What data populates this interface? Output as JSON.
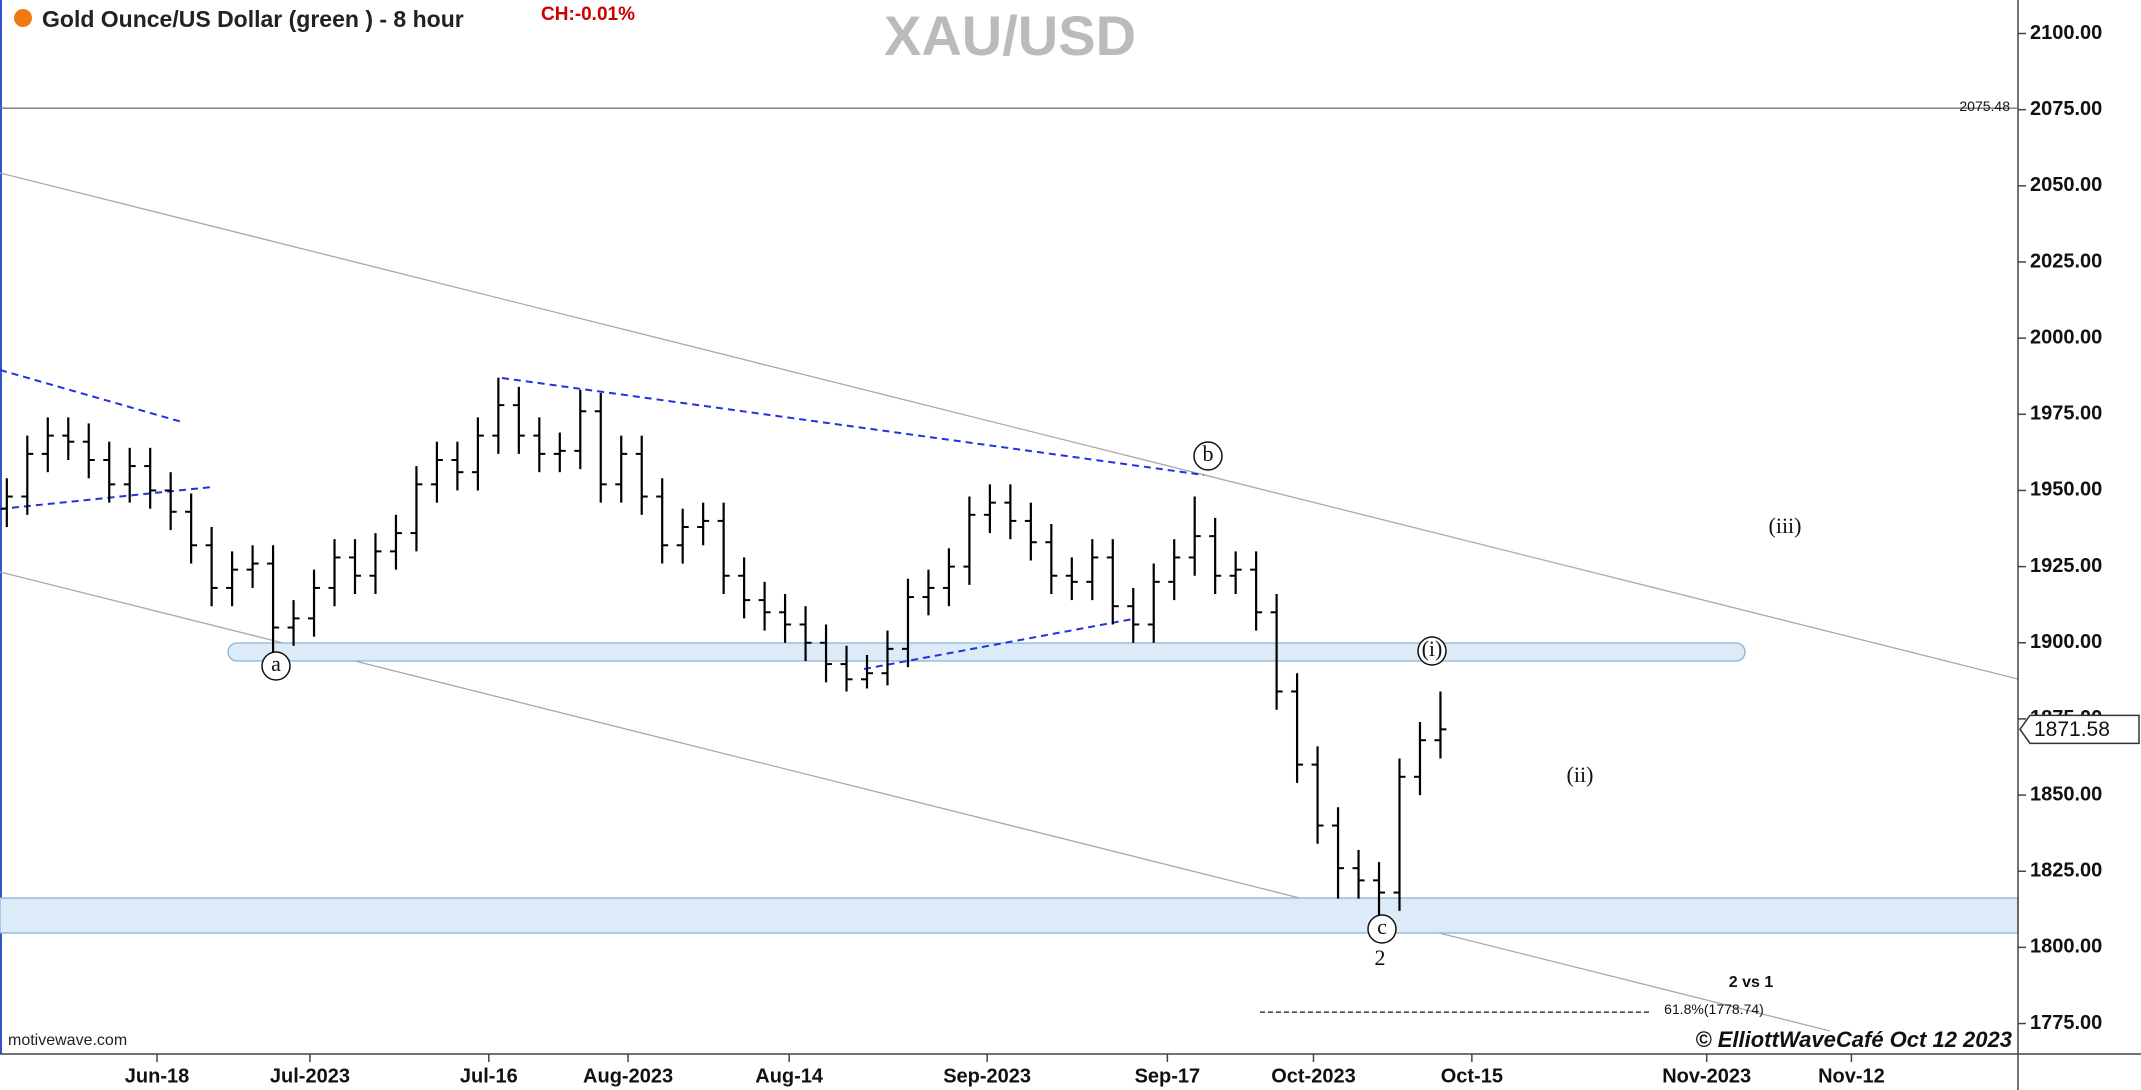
{
  "chart_data": {
    "type": "ohlc",
    "title": "Gold Ounce/US Dollar (green ) - 8 hour",
    "change_label": "CH:-0.01%",
    "symbol": "XAU/USD",
    "source": "motivewave.com",
    "copyright": "© ElliottWaveCafé Oct 12 2023",
    "color": "#000000",
    "x": [
      0.5,
      2,
      3.5,
      5,
      6.5,
      8,
      9.5,
      11,
      12.5,
      14,
      15.5,
      17,
      18.5,
      20,
      21.5,
      23,
      24.5,
      26,
      27.5,
      29,
      30.5,
      32,
      33.5,
      35,
      36.5,
      38,
      39.5,
      41,
      42.5,
      44,
      45.5,
      47,
      48.5,
      50,
      51.5,
      53,
      54.5,
      56,
      57.5,
      59,
      60.5,
      62,
      63.5,
      65,
      66.5,
      68,
      69.5,
      71,
      72.5,
      74,
      75.5,
      77,
      78.5,
      80,
      81.5,
      83,
      84.5,
      86,
      87.5,
      89,
      90.5,
      92,
      93.5,
      95,
      96.5,
      98,
      99.5,
      101,
      102.5,
      104,
      105.5
    ],
    "open": [
      1944,
      1948,
      1962,
      1968,
      1966,
      1960,
      1952,
      1958,
      1950,
      1943,
      1932,
      1918,
      1924,
      1926,
      1905,
      1908,
      1918,
      1928,
      1922,
      1930,
      1936,
      1952,
      1960,
      1956,
      1968,
      1978,
      1968,
      1962,
      1963,
      1976,
      1952,
      1962,
      1948,
      1932,
      1938,
      1940,
      1922,
      1914,
      1910,
      1906,
      1900,
      1893,
      1888,
      1890,
      1898,
      1915,
      1918,
      1925,
      1942,
      1946,
      1940,
      1933,
      1922,
      1920,
      1928,
      1912,
      1906,
      1920,
      1928,
      1935,
      1922,
      1924,
      1910,
      1884,
      1860,
      1840,
      1826,
      1822,
      1818,
      1856,
      1868
    ],
    "high": [
      1954,
      1968,
      1974,
      1974,
      1972,
      1966,
      1964,
      1964,
      1956,
      1949,
      1938,
      1930,
      1932,
      1932,
      1914,
      1924,
      1934,
      1934,
      1936,
      1942,
      1958,
      1966,
      1966,
      1974,
      1987,
      1984,
      1974,
      1969,
      1983,
      1982,
      1968,
      1968,
      1954,
      1944,
      1946,
      1946,
      1928,
      1920,
      1916,
      1912,
      1906,
      1899,
      1896,
      1904,
      1921,
      1924,
      1931,
      1948,
      1952,
      1952,
      1946,
      1939,
      1928,
      1934,
      1934,
      1918,
      1926,
      1934,
      1948,
      1941,
      1930,
      1930,
      1916,
      1890,
      1866,
      1846,
      1832,
      1828,
      1862,
      1874,
      1884
    ],
    "low": [
      1938,
      1942,
      1956,
      1960,
      1954,
      1946,
      1946,
      1944,
      1937,
      1926,
      1912,
      1912,
      1918,
      1893,
      1899,
      1902,
      1912,
      1916,
      1916,
      1924,
      1930,
      1946,
      1950,
      1950,
      1962,
      1962,
      1956,
      1956,
      1957,
      1946,
      1946,
      1942,
      1926,
      1926,
      1932,
      1916,
      1908,
      1904,
      1900,
      1894,
      1887,
      1884,
      1885,
      1886,
      1892,
      1909,
      1912,
      1919,
      1936,
      1934,
      1927,
      1916,
      1914,
      1914,
      1906,
      1900,
      1900,
      1914,
      1922,
      1916,
      1916,
      1904,
      1878,
      1854,
      1834,
      1816,
      1816,
      1810,
      1812,
      1850,
      1862
    ],
    "close": [
      1948,
      1962,
      1968,
      1966,
      1960,
      1952,
      1958,
      1950,
      1943,
      1932,
      1918,
      1924,
      1926,
      1905,
      1908,
      1918,
      1928,
      1922,
      1930,
      1936,
      1952,
      1960,
      1956,
      1968,
      1978,
      1968,
      1962,
      1963,
      1976,
      1952,
      1962,
      1948,
      1932,
      1938,
      1940,
      1922,
      1914,
      1910,
      1906,
      1900,
      1893,
      1888,
      1890,
      1898,
      1915,
      1918,
      1925,
      1942,
      1946,
      1940,
      1933,
      1922,
      1920,
      1928,
      1912,
      1906,
      1920,
      1928,
      1935,
      1922,
      1924,
      1910,
      1884,
      1860,
      1840,
      1826,
      1822,
      1818,
      1856,
      1868,
      1871.58
    ],
    "xlim": [
      0,
      147.8
    ],
    "xticks": [
      {
        "value": 11.5,
        "label": "Jun-18"
      },
      {
        "value": 22.7,
        "label": "Jul-2023"
      },
      {
        "value": 35.8,
        "label": "Jul-16"
      },
      {
        "value": 46.0,
        "label": "Aug-2023"
      },
      {
        "value": 57.8,
        "label": "Aug-14"
      },
      {
        "value": 72.3,
        "label": "Sep-2023"
      },
      {
        "value": 85.5,
        "label": "Sep-17"
      },
      {
        "value": 96.2,
        "label": "Oct-2023"
      },
      {
        "value": 107.8,
        "label": "Oct-15"
      },
      {
        "value": 125.0,
        "label": "Nov-2023"
      },
      {
        "value": 135.6,
        "label": "Nov-12"
      }
    ],
    "ylim": [
      1765,
      2111
    ],
    "yticks": [
      {
        "value": 1775,
        "label": "1775.00"
      },
      {
        "value": 1800,
        "label": "1800.00"
      },
      {
        "value": 1825,
        "label": "1825.00"
      },
      {
        "value": 1850,
        "label": "1850.00"
      },
      {
        "value": 1875,
        "label": "1875.00"
      },
      {
        "value": 1900,
        "label": "1900.00"
      },
      {
        "value": 1925,
        "label": "1925.00"
      },
      {
        "value": 1950,
        "label": "1950.00"
      },
      {
        "value": 1975,
        "label": "1975.00"
      },
      {
        "value": 2000,
        "label": "2000.00"
      },
      {
        "value": 2025,
        "label": "2025.00"
      },
      {
        "value": 2050,
        "label": "2050.00"
      },
      {
        "value": 2075,
        "label": "2075.00"
      },
      {
        "value": 2100,
        "label": "2100.00"
      }
    ],
    "resistance_level": 2075.48,
    "fib_level": 1778.74,
    "fib_label": "61.8%(1778.74)",
    "ratio_label": "2 vs 1",
    "wave_labels": [
      "a",
      "b",
      "c",
      "2",
      "(i)",
      "(ii)",
      "(iii)"
    ]
  }
}
